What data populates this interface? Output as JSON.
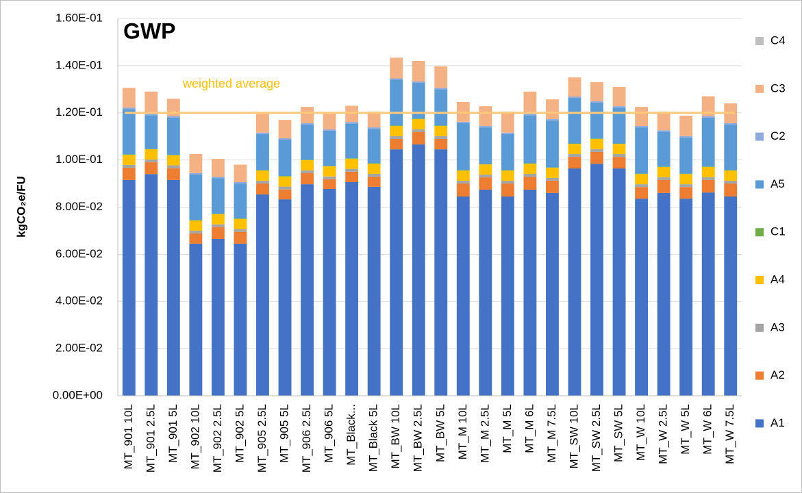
{
  "chart_data": {
    "type": "stacked_bar",
    "title": "GWP",
    "ylabel": "kgCO₂e/FU",
    "categories": [
      "MT_901 10L",
      "MT_901 2.5L",
      "MT_901 5L",
      "MT_902 10L",
      "MT_902 2.5L",
      "MT_902 5L",
      "MT_905 2.5L",
      "MT_905 5L",
      "MT_906 2.5L",
      "MT_906 5L",
      "MT_Black...",
      "MT_Black 5L",
      "MT_BW 10L",
      "MT_BW 2.5L",
      "MT_BW 5L",
      "MT_M 10L",
      "MT_M 2.5L",
      "MT_M 5L",
      "MT_M 6L",
      "MT_M 7.5L",
      "MT_SW 10L",
      "MT_SW 2.5L",
      "MT_SW 5L",
      "MT_W 10L",
      "MT_W 2.5L",
      "MT_W 5L",
      "MT_W 6L",
      "MT_W 7.5L"
    ],
    "series": [
      {
        "name": "A1",
        "color": "#4472c4",
        "values": [
          0.0915,
          0.094,
          0.0915,
          0.0645,
          0.0665,
          0.0645,
          0.0854,
          0.0833,
          0.0897,
          0.0877,
          0.0906,
          0.0886,
          0.1045,
          0.1066,
          0.1045,
          0.0845,
          0.0874,
          0.0845,
          0.0874,
          0.086,
          0.0964,
          0.0984,
          0.0964,
          0.0836,
          0.086,
          0.0836,
          0.0862,
          0.0845
        ]
      },
      {
        "name": "A2",
        "color": "#ed7d31",
        "values": [
          0.0052,
          0.005,
          0.005,
          0.0043,
          0.005,
          0.005,
          0.0046,
          0.0042,
          0.0047,
          0.0041,
          0.0044,
          0.0043,
          0.0044,
          0.0052,
          0.0044,
          0.0055,
          0.0052,
          0.0055,
          0.0055,
          0.0052,
          0.0049,
          0.005,
          0.0049,
          0.0049,
          0.0055,
          0.0049,
          0.0053,
          0.0055
        ]
      },
      {
        "name": "A3",
        "color": "#a5a5a5",
        "values": [
          0.0012,
          0.0012,
          0.0012,
          0.0012,
          0.0012,
          0.0012,
          0.0012,
          0.0012,
          0.0012,
          0.0012,
          0.0012,
          0.0012,
          0.0012,
          0.0012,
          0.0012,
          0.0012,
          0.0012,
          0.0012,
          0.0012,
          0.0012,
          0.0012,
          0.0012,
          0.0012,
          0.0012,
          0.0012,
          0.0012,
          0.0012,
          0.0012
        ]
      },
      {
        "name": "A4",
        "color": "#ffc000",
        "values": [
          0.0043,
          0.0043,
          0.0043,
          0.0043,
          0.0043,
          0.0043,
          0.0043,
          0.0043,
          0.0043,
          0.0043,
          0.0043,
          0.0043,
          0.0043,
          0.0043,
          0.0043,
          0.0043,
          0.0043,
          0.0043,
          0.0043,
          0.0043,
          0.0043,
          0.0043,
          0.0043,
          0.0043,
          0.0043,
          0.0043,
          0.0043,
          0.0043
        ]
      },
      {
        "name": "C1",
        "color": "#70ad47",
        "values": [
          0.0002,
          0.0002,
          0.0002,
          0.0002,
          0.0002,
          0.0002,
          0.0002,
          0.0002,
          0.0002,
          0.0002,
          0.0002,
          0.0002,
          0.0002,
          0.0002,
          0.0002,
          0.0002,
          0.0002,
          0.0002,
          0.0002,
          0.0002,
          0.0002,
          0.0002,
          0.0002,
          0.0002,
          0.0002,
          0.0002,
          0.0002,
          0.0002
        ]
      },
      {
        "name": "A5",
        "color": "#5b9bd5",
        "values": [
          0.0192,
          0.0143,
          0.0158,
          0.0193,
          0.0151,
          0.0148,
          0.0153,
          0.0154,
          0.0149,
          0.0149,
          0.0148,
          0.0146,
          0.0194,
          0.0152,
          0.0154,
          0.0199,
          0.0155,
          0.0153,
          0.0204,
          0.0198,
          0.0193,
          0.0152,
          0.0152,
          0.0196,
          0.0148,
          0.0153,
          0.0208,
          0.0193
        ]
      },
      {
        "name": "C2",
        "color": "#8faadc",
        "values": [
          0.0006,
          0.0006,
          0.0006,
          0.0006,
          0.0006,
          0.0006,
          0.0006,
          0.0006,
          0.0006,
          0.0006,
          0.0006,
          0.0006,
          0.0006,
          0.0006,
          0.0006,
          0.0006,
          0.0006,
          0.0006,
          0.0006,
          0.0006,
          0.0006,
          0.0006,
          0.0006,
          0.0006,
          0.0006,
          0.0006,
          0.0006,
          0.0006
        ]
      },
      {
        "name": "C3",
        "color": "#f4b183",
        "values": [
          0.0084,
          0.0094,
          0.0074,
          0.0081,
          0.0076,
          0.0074,
          0.008,
          0.0078,
          0.0069,
          0.0066,
          0.0069,
          0.0067,
          0.0088,
          0.0087,
          0.0091,
          0.0084,
          0.0084,
          0.0089,
          0.0094,
          0.0084,
          0.0081,
          0.0081,
          0.0082,
          0.0081,
          0.0079,
          0.0087,
          0.0084,
          0.0084
        ]
      },
      {
        "name": "C4",
        "color": "#bfbfbf",
        "values": [
          0,
          0,
          0,
          0,
          0,
          0,
          0,
          0,
          0,
          0,
          0,
          0,
          0,
          0,
          0,
          0,
          0,
          0,
          0,
          0,
          0,
          0,
          0,
          0,
          0,
          0,
          0,
          0
        ]
      }
    ],
    "ylim": [
      0,
      0.16
    ],
    "yticks": [
      {
        "value": 0,
        "label": "0.00E+00"
      },
      {
        "value": 0.02,
        "label": "2.00E-02"
      },
      {
        "value": 0.04,
        "label": "4.00E-02"
      },
      {
        "value": 0.06,
        "label": "6.00E-02"
      },
      {
        "value": 0.08,
        "label": "8.00E-02"
      },
      {
        "value": 0.1,
        "label": "1.00E-01"
      },
      {
        "value": 0.12,
        "label": "1.20E-01"
      },
      {
        "value": 0.14,
        "label": "1.40E-01"
      },
      {
        "value": 0.16,
        "label": "1.60E-01"
      }
    ],
    "grid": true,
    "legend": "right",
    "reference_line": {
      "value": 0.12,
      "label": "weighted average",
      "color": "#ffc87a"
    }
  }
}
